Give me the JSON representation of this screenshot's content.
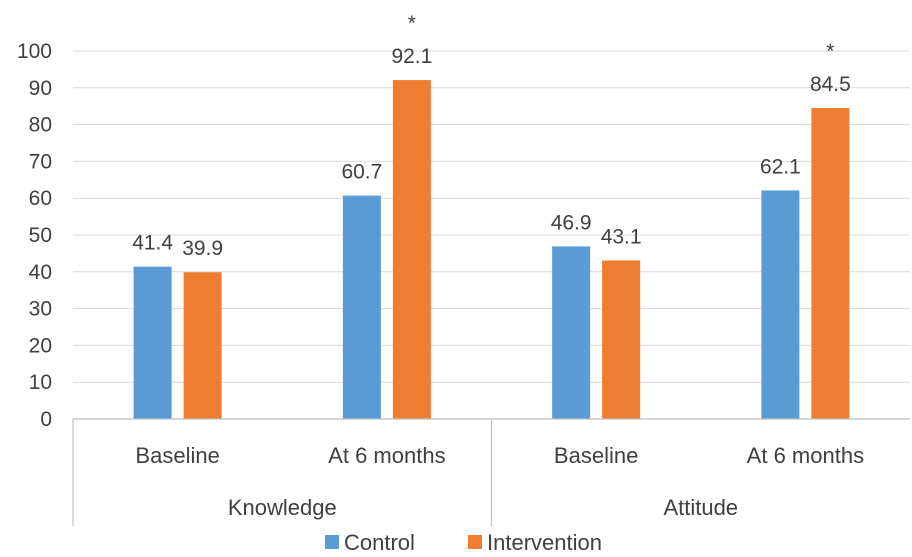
{
  "chart_data": {
    "type": "bar",
    "groups": [
      {
        "label": "Knowledge",
        "categories": [
          "Baseline",
          "At 6 months"
        ]
      },
      {
        "label": "Attitude",
        "categories": [
          "Baseline",
          "At 6 months"
        ]
      }
    ],
    "categories": [
      "Baseline",
      "At 6 months",
      "Baseline",
      "At 6 months"
    ],
    "series": [
      {
        "name": "Control",
        "color": "#5B9BD5",
        "values": [
          41.4,
          60.7,
          46.9,
          62.1
        ]
      },
      {
        "name": "Intervention",
        "color": "#ED7D31",
        "values": [
          39.9,
          92.1,
          43.1,
          84.5
        ]
      }
    ],
    "data_labels": {
      "Control": [
        "41.4",
        "60.7",
        "46.9",
        "62.1"
      ],
      "Intervention": [
        "39.9",
        "92.1",
        "43.1",
        "84.5"
      ]
    },
    "significance_markers": {
      "Intervention": [
        "",
        "*",
        "",
        "*"
      ]
    },
    "y_ticks": [
      "0",
      "10",
      "20",
      "30",
      "40",
      "50",
      "60",
      "70",
      "80",
      "90",
      "100"
    ],
    "ylim": [
      0,
      100
    ],
    "grid": true,
    "legend_position": "bottom",
    "title": "",
    "xlabel": "",
    "ylabel": ""
  }
}
